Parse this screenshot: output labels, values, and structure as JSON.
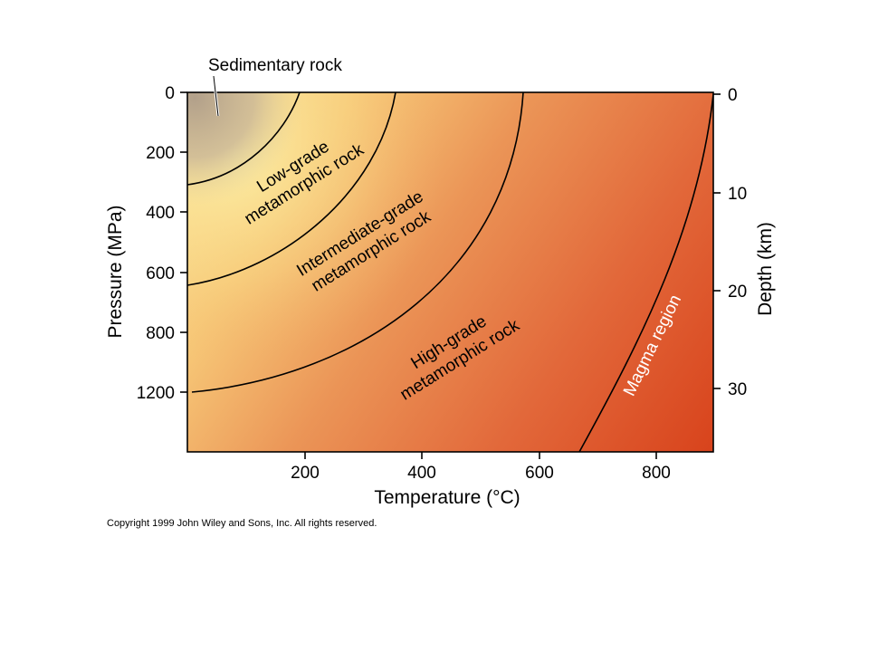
{
  "diagram": {
    "left_axis": {
      "title": "Pressure (MPa)",
      "ticks": [
        "0",
        "200",
        "400",
        "600",
        "800",
        "1200"
      ]
    },
    "right_axis": {
      "title": "Depth (km)",
      "ticks": [
        "0",
        "10",
        "20",
        "30"
      ]
    },
    "bottom_axis": {
      "title": "Temperature (°C)",
      "ticks": [
        "200",
        "400",
        "600",
        "800"
      ]
    },
    "regions": {
      "sedimentary": "Sedimentary rock",
      "low_grade_1": "Low-grade",
      "low_grade_2": "metamorphic rock",
      "intermediate_1": "Intermediate-grade",
      "intermediate_2": "metamorphic rock",
      "high_grade_1": "High-grade",
      "high_grade_2": "metamorphic rock",
      "magma": "Magma region"
    },
    "copyright": "Copyright 1999 John Wiley and Sons, Inc. All rights reserved.",
    "colors": {
      "sedimentary": "#b8a58c",
      "light_yellow": "#fbe99a",
      "orange": "#e9824e",
      "deep_red": "#d9481f"
    }
  }
}
